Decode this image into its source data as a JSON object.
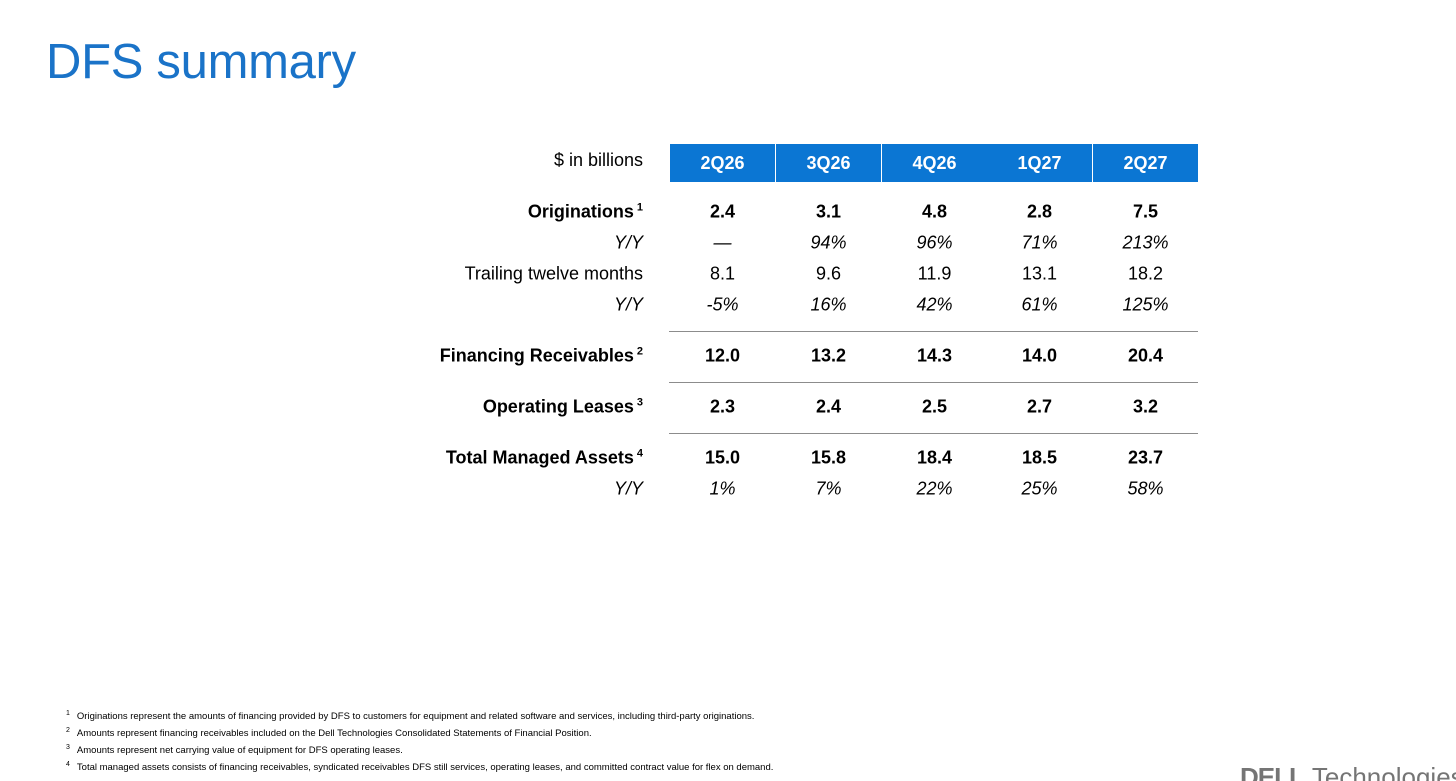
{
  "title": "DFS summary",
  "units_label": "$ in billions",
  "columns": [
    "2Q26",
    "3Q26",
    "4Q26",
    "1Q27",
    "2Q27"
  ],
  "rows": [
    {
      "label": "Originations",
      "note": "1",
      "style": "bold",
      "values": [
        "2.4",
        "3.1",
        "4.8",
        "2.8",
        "7.5"
      ]
    },
    {
      "label": "Y/Y",
      "note": "",
      "style": "italic",
      "values": [
        "—",
        "94%",
        "96%",
        "71%",
        "213%"
      ]
    },
    {
      "label": "Trailing twelve months",
      "note": "",
      "style": "normal",
      "values": [
        "8.1",
        "9.6",
        "11.9",
        "13.1",
        "18.2"
      ]
    },
    {
      "label": "Y/Y",
      "note": "",
      "style": "italic",
      "values": [
        "-5%",
        "16%",
        "42%",
        "61%",
        "125%"
      ]
    },
    {
      "label": "Financing Receivables",
      "note": "2",
      "style": "bold",
      "values": [
        "12.0",
        "13.2",
        "14.3",
        "14.0",
        "20.4"
      ]
    },
    {
      "label": "Operating Leases",
      "note": "3",
      "style": "bold",
      "values": [
        "2.3",
        "2.4",
        "2.5",
        "2.7",
        "3.2"
      ]
    },
    {
      "label": "Total Managed Assets",
      "note": "4",
      "style": "bold",
      "values": [
        "15.0",
        "15.8",
        "18.4",
        "18.5",
        "23.7"
      ]
    },
    {
      "label": "Y/Y",
      "note": "",
      "style": "italic",
      "values": [
        "1%",
        "7%",
        "22%",
        "25%",
        "58%"
      ]
    }
  ],
  "footnotes": [
    {
      "num": "1",
      "text": "Originations represent the amounts of financing provided by DFS to customers for equipment and related software and services, including third-party originations."
    },
    {
      "num": "2",
      "text": "Amounts represent financing receivables included on the Dell Technologies Consolidated Statements of Financial Position."
    },
    {
      "num": "3",
      "text": "Amounts represent net carrying value of equipment for DFS operating leases."
    },
    {
      "num": "4",
      "text": "Total managed assets consists of financing receivables, syndicated receivables DFS still services, operating leases, and committed contract value for flex on demand."
    }
  ],
  "logo": {
    "mark": "DELL",
    "word": "Technologies"
  },
  "colors": {
    "accent": "#0b76d3",
    "title": "#1a73c8",
    "rule": "#8c8c8c"
  }
}
